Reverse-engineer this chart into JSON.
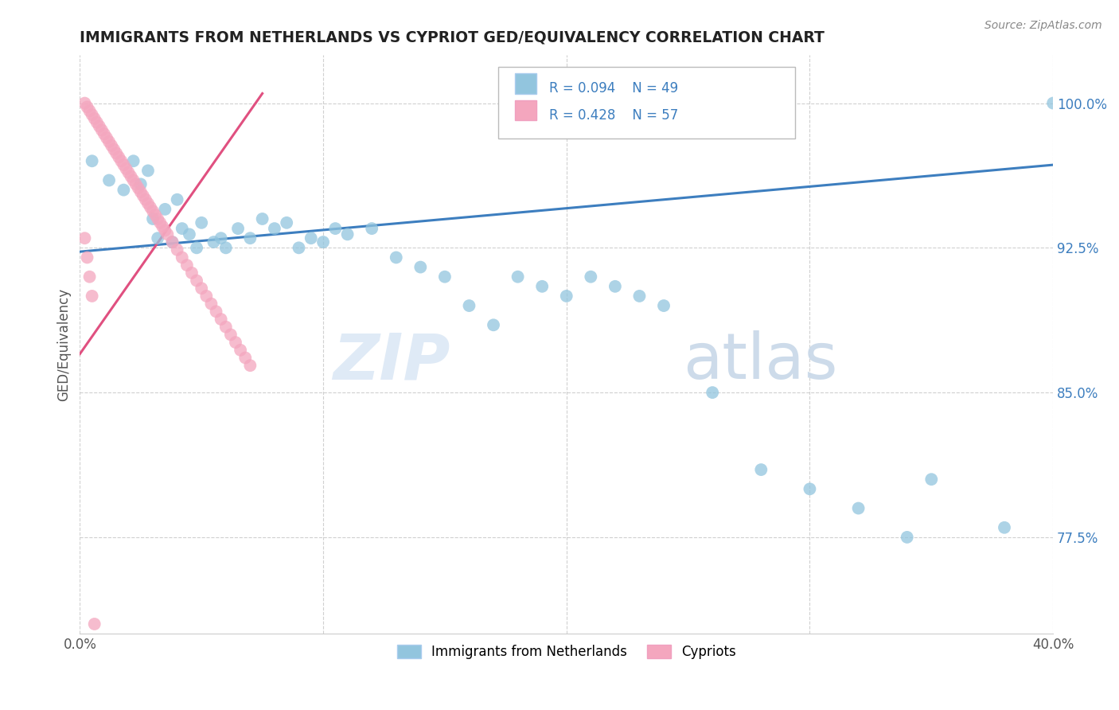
{
  "title": "IMMIGRANTS FROM NETHERLANDS VS CYPRIOT GED/EQUIVALENCY CORRELATION CHART",
  "source": "Source: ZipAtlas.com",
  "ylabel": "GED/Equivalency",
  "xlim": [
    0.0,
    0.4
  ],
  "ylim": [
    0.725,
    1.025
  ],
  "yticks": [
    0.775,
    0.85,
    0.925,
    1.0
  ],
  "ytick_labels": [
    "77.5%",
    "85.0%",
    "92.5%",
    "100.0%"
  ],
  "xticks": [
    0.0,
    0.1,
    0.2,
    0.3,
    0.4
  ],
  "xtick_labels": [
    "0.0%",
    "",
    "",
    "",
    "40.0%"
  ],
  "legend_label1": "Immigrants from Netherlands",
  "legend_label2": "Cypriots",
  "r1": 0.094,
  "n1": 49,
  "r2": 0.428,
  "n2": 57,
  "color_blue": "#92c5de",
  "color_pink": "#f4a6be",
  "color_trend_blue": "#3d7ebf",
  "color_trend_pink": "#e05080",
  "watermark_zip": "ZIP",
  "watermark_atlas": "atlas",
  "netherlands_x": [
    0.005,
    0.012,
    0.018,
    0.022,
    0.025,
    0.028,
    0.03,
    0.032,
    0.035,
    0.038,
    0.04,
    0.042,
    0.045,
    0.048,
    0.05,
    0.055,
    0.058,
    0.06,
    0.065,
    0.07,
    0.075,
    0.08,
    0.085,
    0.09,
    0.095,
    0.1,
    0.105,
    0.11,
    0.12,
    0.13,
    0.14,
    0.15,
    0.16,
    0.17,
    0.18,
    0.19,
    0.2,
    0.21,
    0.22,
    0.23,
    0.24,
    0.26,
    0.28,
    0.3,
    0.32,
    0.34,
    0.35,
    0.38,
    0.4
  ],
  "netherlands_y": [
    0.97,
    0.96,
    0.955,
    0.97,
    0.958,
    0.965,
    0.94,
    0.93,
    0.945,
    0.928,
    0.95,
    0.935,
    0.932,
    0.925,
    0.938,
    0.928,
    0.93,
    0.925,
    0.935,
    0.93,
    0.94,
    0.935,
    0.938,
    0.925,
    0.93,
    0.928,
    0.935,
    0.932,
    0.935,
    0.92,
    0.915,
    0.91,
    0.895,
    0.885,
    0.91,
    0.905,
    0.9,
    0.91,
    0.905,
    0.9,
    0.895,
    0.85,
    0.81,
    0.8,
    0.79,
    0.775,
    0.805,
    0.78,
    1.0
  ],
  "cypriots_x": [
    0.002,
    0.003,
    0.004,
    0.005,
    0.006,
    0.007,
    0.008,
    0.009,
    0.01,
    0.011,
    0.012,
    0.013,
    0.014,
    0.015,
    0.016,
    0.017,
    0.018,
    0.019,
    0.02,
    0.021,
    0.022,
    0.023,
    0.024,
    0.025,
    0.026,
    0.027,
    0.028,
    0.029,
    0.03,
    0.031,
    0.032,
    0.033,
    0.034,
    0.035,
    0.036,
    0.038,
    0.04,
    0.042,
    0.044,
    0.046,
    0.048,
    0.05,
    0.052,
    0.054,
    0.056,
    0.058,
    0.06,
    0.062,
    0.064,
    0.066,
    0.068,
    0.07,
    0.002,
    0.003,
    0.004,
    0.005,
    0.006
  ],
  "cypriots_y": [
    1.0,
    0.998,
    0.996,
    0.994,
    0.992,
    0.99,
    0.988,
    0.986,
    0.984,
    0.982,
    0.98,
    0.978,
    0.976,
    0.974,
    0.972,
    0.97,
    0.968,
    0.966,
    0.964,
    0.962,
    0.96,
    0.958,
    0.956,
    0.954,
    0.952,
    0.95,
    0.948,
    0.946,
    0.944,
    0.942,
    0.94,
    0.938,
    0.936,
    0.934,
    0.932,
    0.928,
    0.924,
    0.92,
    0.916,
    0.912,
    0.908,
    0.904,
    0.9,
    0.896,
    0.892,
    0.888,
    0.884,
    0.88,
    0.876,
    0.872,
    0.868,
    0.864,
    0.93,
    0.92,
    0.91,
    0.9,
    0.73
  ]
}
